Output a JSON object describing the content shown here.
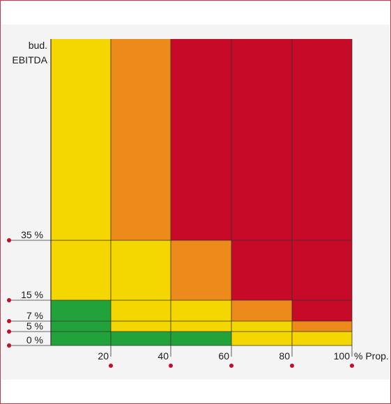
{
  "chart_data": {
    "type": "heatmap",
    "ylabel": [
      "bud.",
      "EBITDA"
    ],
    "xlabel": "% Prop.",
    "x_ticks": [
      20,
      40,
      60,
      80,
      100
    ],
    "y_ticks": [
      "35 %",
      "15 %",
      "7 %",
      "5 %",
      "0 %"
    ],
    "column_edges": [
      0,
      20,
      40,
      60,
      80,
      100
    ],
    "row_edges": [
      0,
      5,
      7,
      15,
      35,
      100
    ],
    "colors": {
      "green": "#22a23a",
      "yellow": "#f4d600",
      "orange": "#ec8a1c",
      "red": "#c60a28"
    },
    "rows_bottom_to_top": [
      [
        "green",
        "green",
        "green",
        "yellow",
        "yellow"
      ],
      [
        "green",
        "yellow",
        "yellow",
        "yellow",
        "orange"
      ],
      [
        "green",
        "yellow",
        "yellow",
        "orange",
        "red"
      ],
      [
        "yellow",
        "yellow",
        "orange",
        "red",
        "red"
      ],
      [
        "yellow",
        "orange",
        "red",
        "red",
        "red"
      ]
    ]
  }
}
